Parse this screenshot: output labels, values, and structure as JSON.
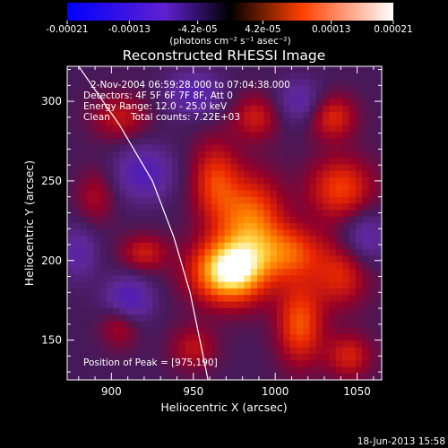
{
  "colorbar": {
    "tick_labels": [
      "-0.00021",
      "-0.00013",
      "-4.2e-05",
      "4.2e-05",
      "0.00013",
      "0.00021"
    ],
    "unit_label": "(photons cm⁻² s⁻¹ asec⁻²)",
    "range": [
      -0.00021,
      0.00021
    ],
    "colors": {
      "min": "#0000ff",
      "low": "#6020d0",
      "mid": "#000000",
      "high": "#ff4000",
      "max": "#ffffff"
    }
  },
  "chart_data": {
    "type": "heatmap",
    "title": "Reconstructed RHESSI Image",
    "xlabel": "Heliocentric X (arcsec)",
    "ylabel": "Heliocentric Y (arcsec)",
    "xlim": [
      873,
      1065
    ],
    "ylim": [
      125,
      322
    ],
    "x_ticks": [
      900,
      950,
      1000,
      1050
    ],
    "y_ticks": [
      150,
      200,
      250,
      300
    ],
    "annotations": [
      "2-Nov-2004 06:59:28.000 to 07:04:38.000",
      "Detectors: 4F 5F 6F 7F 8F, Att 0",
      "Energy Range: 12.0 - 25.0 keV",
      "Clean",
      "Total counts: 7.22E+03"
    ],
    "peak_label": "Position of Peak = [975,190]",
    "peak": [
      975,
      190
    ],
    "limb_points": [
      [
        880,
        322
      ],
      [
        905,
        285
      ],
      [
        925,
        250
      ],
      [
        938,
        215
      ],
      [
        948,
        180
      ],
      [
        955,
        145
      ],
      [
        959,
        125
      ]
    ],
    "sources": [
      {
        "x": 972,
        "y": 193,
        "value": 1.0,
        "sx": 16,
        "sy": 14
      },
      {
        "x": 985,
        "y": 225,
        "value": 0.62,
        "sx": 14,
        "sy": 20
      },
      {
        "x": 963,
        "y": 250,
        "value": 0.45,
        "sx": 10,
        "sy": 18
      },
      {
        "x": 1040,
        "y": 245,
        "value": 0.5,
        "sx": 14,
        "sy": 14
      },
      {
        "x": 1010,
        "y": 205,
        "value": 0.48,
        "sx": 14,
        "sy": 12
      },
      {
        "x": 1015,
        "y": 160,
        "value": 0.55,
        "sx": 10,
        "sy": 18
      },
      {
        "x": 1040,
        "y": 190,
        "value": 0.4,
        "sx": 12,
        "sy": 14
      },
      {
        "x": 920,
        "y": 205,
        "value": 0.35,
        "sx": 10,
        "sy": 8
      },
      {
        "x": 905,
        "y": 290,
        "value": 0.32,
        "sx": 12,
        "sy": 10
      },
      {
        "x": 905,
        "y": 160,
        "value": 0.3,
        "sx": 8,
        "sy": 10
      },
      {
        "x": 988,
        "y": 290,
        "value": 0.35,
        "sx": 10,
        "sy": 10
      },
      {
        "x": 1035,
        "y": 290,
        "value": 0.42,
        "sx": 10,
        "sy": 10
      },
      {
        "x": 1045,
        "y": 140,
        "value": 0.38,
        "sx": 10,
        "sy": 10
      },
      {
        "x": 890,
        "y": 240,
        "value": 0.25,
        "sx": 8,
        "sy": 12
      },
      {
        "x": 950,
        "y": 145,
        "value": 0.3,
        "sx": 10,
        "sy": 10
      },
      {
        "x": 910,
        "y": 175,
        "value": -0.45,
        "sx": 10,
        "sy": 10
      },
      {
        "x": 920,
        "y": 255,
        "value": -0.4,
        "sx": 12,
        "sy": 12
      },
      {
        "x": 950,
        "y": 305,
        "value": -0.35,
        "sx": 12,
        "sy": 10
      },
      {
        "x": 1055,
        "y": 215,
        "value": -0.3,
        "sx": 10,
        "sy": 12
      },
      {
        "x": 880,
        "y": 205,
        "value": -0.28,
        "sx": 8,
        "sy": 12
      },
      {
        "x": 1015,
        "y": 300,
        "value": -0.3,
        "sx": 10,
        "sy": 10
      }
    ]
  },
  "footer": {
    "timestamp": "18-Jun-2013 15:58"
  }
}
